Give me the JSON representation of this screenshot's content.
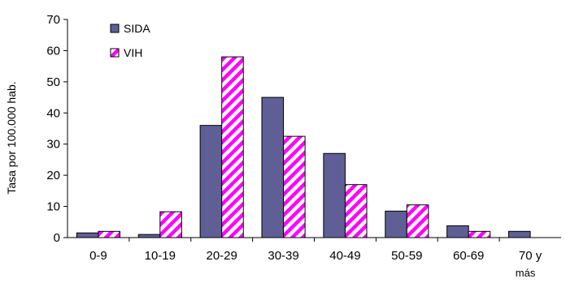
{
  "chart_data": {
    "type": "bar",
    "title": "",
    "xlabel": "",
    "ylabel": "Tasa por 100.000 hab.",
    "ylim": [
      0,
      70
    ],
    "yticks": [
      0,
      10,
      20,
      30,
      40,
      50,
      60,
      70
    ],
    "categories": [
      "0-9",
      "10-19",
      "20-29",
      "30-39",
      "40-49",
      "50-59",
      "60-69",
      "70 y más"
    ],
    "series": [
      {
        "name": "SIDA",
        "values": [
          1.5,
          1.0,
          36,
          45,
          27,
          8.5,
          3.8,
          2.0
        ],
        "color": "#5f5f96"
      },
      {
        "name": "VIH",
        "values": [
          2.0,
          8.3,
          58,
          32.5,
          17,
          10.5,
          2.0,
          0
        ],
        "color": "#ff00ff",
        "pattern": "diagonal-stripes"
      }
    ],
    "legend": "top-left",
    "grid": false
  }
}
